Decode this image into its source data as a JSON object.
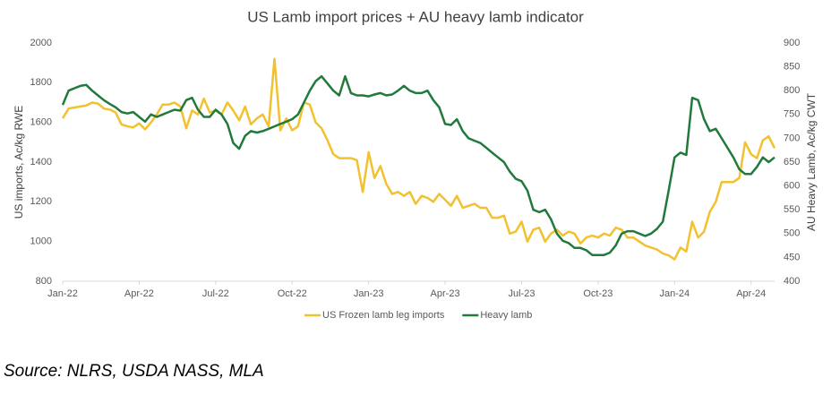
{
  "chart_data": {
    "type": "line",
    "title": "US Lamb import prices + AU heavy lamb indicator",
    "ylabel": "US imports, Ac/kg RWE",
    "y2label": "AU Heavy Lamb, Ac/kg CWT",
    "source": "Source: NLRS, USDA NASS, MLA",
    "x": [
      0,
      1,
      2,
      3,
      4,
      5,
      6,
      7,
      8,
      9,
      10,
      11,
      12,
      13,
      14,
      15,
      16,
      17,
      18,
      19,
      20,
      21,
      22,
      23,
      24,
      25,
      26,
      27,
      28,
      29,
      30,
      31,
      32,
      33,
      34,
      35,
      36,
      37,
      38,
      39,
      40,
      41,
      42,
      43,
      44,
      45,
      46,
      47,
      48,
      49,
      50,
      51,
      52,
      53,
      54,
      55,
      56,
      57,
      58,
      59,
      60,
      61,
      62,
      63,
      64,
      65,
      66,
      67,
      68,
      69,
      70,
      71,
      72,
      73,
      74,
      75,
      76,
      77,
      78,
      79,
      80,
      81,
      82,
      83,
      84,
      85,
      86,
      87,
      88,
      89,
      90,
      91,
      92,
      93,
      94,
      95,
      96,
      97,
      98,
      99,
      100,
      101,
      102,
      103,
      104,
      105,
      106,
      107,
      108,
      109,
      110,
      111,
      112,
      113,
      114,
      115,
      116,
      117,
      118,
      119,
      120,
      121
    ],
    "xlim": [
      0,
      121
    ],
    "xticks": [
      {
        "value": 0,
        "label": "Jan-22"
      },
      {
        "value": 13,
        "label": "Apr-22"
      },
      {
        "value": 26,
        "label": "Jul-22"
      },
      {
        "value": 39,
        "label": "Oct-22"
      },
      {
        "value": 52,
        "label": "Jan-23"
      },
      {
        "value": 65,
        "label": "Apr-23"
      },
      {
        "value": 78,
        "label": "Jul-23"
      },
      {
        "value": 91,
        "label": "Oct-23"
      },
      {
        "value": 104,
        "label": "Jan-24"
      },
      {
        "value": 117,
        "label": "Apr-24"
      }
    ],
    "ylim": [
      800,
      2000
    ],
    "yticks": [
      800,
      1000,
      1200,
      1400,
      1600,
      1800,
      2000
    ],
    "y2lim": [
      400,
      900
    ],
    "y2ticks": [
      400,
      450,
      500,
      550,
      600,
      650,
      700,
      750,
      800,
      850,
      900
    ],
    "series": [
      {
        "name": "US Frozen lamb leg imports",
        "color": "#f2c12e",
        "values": [
          1620,
          1670,
          1675,
          1680,
          1685,
          1700,
          1695,
          1670,
          1665,
          1650,
          1590,
          1580,
          1575,
          1595,
          1565,
          1600,
          1640,
          1690,
          1690,
          1700,
          1680,
          1570,
          1660,
          1640,
          1720,
          1650,
          1660,
          1640,
          1700,
          1660,
          1610,
          1680,
          1590,
          1620,
          1640,
          1580,
          1920,
          1560,
          1620,
          1560,
          1580,
          1700,
          1690,
          1600,
          1570,
          1510,
          1440,
          1420,
          1420,
          1420,
          1410,
          1250,
          1450,
          1320,
          1380,
          1290,
          1240,
          1250,
          1230,
          1250,
          1190,
          1230,
          1220,
          1200,
          1240,
          1210,
          1180,
          1230,
          1170,
          1180,
          1190,
          1170,
          1170,
          1120,
          1120,
          1130,
          1040,
          1050,
          1100,
          1000,
          1060,
          1070,
          1000,
          1040,
          1060,
          1030,
          1050,
          1040,
          990,
          1020,
          1030,
          1020,
          1040,
          1030,
          1070,
          1060,
          1020,
          1020,
          1000,
          980,
          970,
          960,
          940,
          930,
          910,
          970,
          950,
          1100,
          1020,
          1050,
          1150,
          1200,
          1300,
          1300,
          1300,
          1320,
          1500,
          1440,
          1420,
          1510,
          1530,
          1470
        ]
      },
      {
        "name": "Heavy lamb",
        "color": "#217a3c",
        "axis": "y2",
        "values": [
          770,
          800,
          805,
          810,
          812,
          800,
          790,
          780,
          772,
          765,
          755,
          752,
          755,
          745,
          735,
          750,
          745,
          750,
          755,
          760,
          758,
          780,
          785,
          760,
          745,
          745,
          760,
          750,
          730,
          690,
          678,
          705,
          715,
          712,
          715,
          720,
          725,
          730,
          735,
          740,
          750,
          775,
          800,
          820,
          830,
          815,
          800,
          790,
          830,
          795,
          790,
          790,
          788,
          792,
          795,
          790,
          792,
          800,
          810,
          800,
          795,
          795,
          800,
          780,
          765,
          730,
          728,
          740,
          715,
          700,
          695,
          690,
          680,
          670,
          660,
          650,
          630,
          615,
          610,
          590,
          550,
          545,
          550,
          530,
          500,
          485,
          480,
          470,
          470,
          465,
          455,
          455,
          455,
          460,
          475,
          500,
          505,
          505,
          500,
          495,
          500,
          510,
          525,
          590,
          660,
          670,
          665,
          785,
          780,
          740,
          715,
          720,
          700,
          680,
          660,
          635,
          625,
          625,
          640,
          660,
          650,
          660
        ]
      }
    ]
  }
}
